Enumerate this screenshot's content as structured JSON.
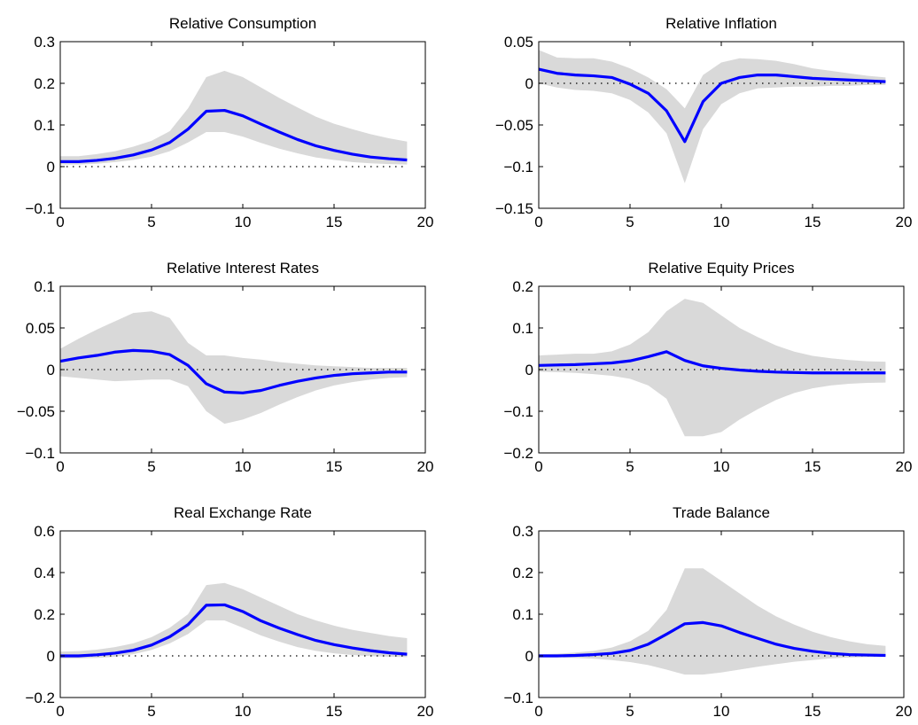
{
  "chart_data": [
    {
      "type": "line",
      "title": "Relative Consumption",
      "xlim": [
        0,
        20
      ],
      "ylim": [
        -0.1,
        0.3
      ],
      "xticks": [
        0,
        5,
        10,
        15,
        20
      ],
      "xtick_labels": [
        "0",
        "5",
        "10",
        "15",
        "20"
      ],
      "yticks": [
        -0.1,
        0,
        0.1,
        0.2,
        0.3
      ],
      "ytick_labels": [
        "−0.1",
        "0",
        "0.1",
        "0.2",
        "0.3"
      ],
      "x": [
        0,
        1,
        2,
        3,
        4,
        5,
        6,
        7,
        8,
        9,
        10,
        11,
        12,
        13,
        14,
        15,
        16,
        17,
        18,
        19
      ],
      "series": [
        {
          "values": [
            0.012,
            0.012,
            0.015,
            0.02,
            0.028,
            0.04,
            0.058,
            0.09,
            0.133,
            0.135,
            0.122,
            0.102,
            0.083,
            0.065,
            0.05,
            0.039,
            0.03,
            0.023,
            0.019,
            0.016
          ]
        }
      ],
      "band_upper": [
        0.025,
        0.025,
        0.03,
        0.037,
        0.048,
        0.062,
        0.085,
        0.14,
        0.215,
        0.23,
        0.215,
        0.19,
        0.165,
        0.142,
        0.12,
        0.103,
        0.09,
        0.078,
        0.068,
        0.06
      ],
      "band_lower": [
        0.005,
        0.005,
        0.007,
        0.011,
        0.016,
        0.024,
        0.037,
        0.058,
        0.083,
        0.083,
        0.072,
        0.057,
        0.043,
        0.032,
        0.022,
        0.016,
        0.011,
        0.008,
        0.006,
        0.005
      ],
      "zero_line": true
    },
    {
      "type": "line",
      "title": "Relative Inflation",
      "xlim": [
        0,
        20
      ],
      "ylim": [
        -0.15,
        0.05
      ],
      "xticks": [
        0,
        5,
        10,
        15,
        20
      ],
      "xtick_labels": [
        "0",
        "5",
        "10",
        "15",
        "20"
      ],
      "yticks": [
        -0.15,
        -0.1,
        -0.05,
        0,
        0.05
      ],
      "ytick_labels": [
        "−0.15",
        "−0.1",
        "−0.05",
        "0",
        "0.05"
      ],
      "x": [
        0,
        1,
        2,
        3,
        4,
        5,
        6,
        7,
        8,
        9,
        10,
        11,
        12,
        13,
        14,
        15,
        16,
        17,
        18,
        19
      ],
      "series": [
        {
          "values": [
            0.017,
            0.012,
            0.01,
            0.009,
            0.007,
            -0.001,
            -0.012,
            -0.033,
            -0.07,
            -0.022,
            0.0,
            0.007,
            0.01,
            0.01,
            0.008,
            0.006,
            0.005,
            0.004,
            0.003,
            0.002
          ]
        }
      ],
      "band_upper": [
        0.04,
        0.031,
        0.03,
        0.03,
        0.026,
        0.018,
        0.007,
        -0.007,
        -0.03,
        0.01,
        0.025,
        0.03,
        0.029,
        0.027,
        0.023,
        0.018,
        0.015,
        0.012,
        0.009,
        0.007
      ],
      "band_lower": [
        0.0,
        -0.005,
        -0.008,
        -0.009,
        -0.012,
        -0.02,
        -0.035,
        -0.06,
        -0.12,
        -0.055,
        -0.025,
        -0.012,
        -0.006,
        -0.005,
        -0.004,
        -0.004,
        -0.003,
        -0.003,
        -0.002,
        -0.002
      ],
      "zero_line": true
    },
    {
      "type": "line",
      "title": "Relative Interest Rates",
      "xlim": [
        0,
        20
      ],
      "ylim": [
        -0.1,
        0.1
      ],
      "xticks": [
        0,
        5,
        10,
        15,
        20
      ],
      "xtick_labels": [
        "0",
        "5",
        "10",
        "15",
        "20"
      ],
      "yticks": [
        -0.1,
        -0.05,
        0,
        0.05,
        0.1
      ],
      "ytick_labels": [
        "−0.1",
        "−0.05",
        "0",
        "0.05",
        "0.1"
      ],
      "x": [
        0,
        1,
        2,
        3,
        4,
        5,
        6,
        7,
        8,
        9,
        10,
        11,
        12,
        13,
        14,
        15,
        16,
        17,
        18,
        19
      ],
      "series": [
        {
          "values": [
            0.01,
            0.014,
            0.017,
            0.021,
            0.023,
            0.022,
            0.018,
            0.005,
            -0.017,
            -0.027,
            -0.028,
            -0.025,
            -0.019,
            -0.014,
            -0.01,
            -0.007,
            -0.005,
            -0.004,
            -0.003,
            -0.003
          ]
        }
      ],
      "band_upper": [
        0.025,
        0.037,
        0.048,
        0.058,
        0.068,
        0.07,
        0.062,
        0.032,
        0.017,
        0.017,
        0.014,
        0.012,
        0.009,
        0.007,
        0.005,
        0.004,
        0.003,
        0.002,
        0.002,
        0.002
      ],
      "band_lower": [
        -0.008,
        -0.01,
        -0.012,
        -0.014,
        -0.013,
        -0.012,
        -0.012,
        -0.02,
        -0.05,
        -0.065,
        -0.06,
        -0.052,
        -0.042,
        -0.033,
        -0.025,
        -0.019,
        -0.015,
        -0.012,
        -0.01,
        -0.009
      ],
      "zero_line": true
    },
    {
      "type": "line",
      "title": "Relative Equity Prices",
      "xlim": [
        0,
        20
      ],
      "ylim": [
        -0.2,
        0.2
      ],
      "xticks": [
        0,
        5,
        10,
        15,
        20
      ],
      "xtick_labels": [
        "0",
        "5",
        "10",
        "15",
        "20"
      ],
      "yticks": [
        -0.2,
        -0.1,
        0,
        0.1,
        0.2
      ],
      "ytick_labels": [
        "−0.2",
        "−0.1",
        "0",
        "0.1",
        "0.2"
      ],
      "x": [
        0,
        1,
        2,
        3,
        4,
        5,
        6,
        7,
        8,
        9,
        10,
        11,
        12,
        13,
        14,
        15,
        16,
        17,
        18,
        19
      ],
      "series": [
        {
          "values": [
            0.01,
            0.011,
            0.012,
            0.014,
            0.016,
            0.021,
            0.031,
            0.043,
            0.022,
            0.009,
            0.003,
            -0.001,
            -0.004,
            -0.006,
            -0.007,
            -0.008,
            -0.008,
            -0.008,
            -0.008,
            -0.008
          ]
        }
      ],
      "band_upper": [
        0.034,
        0.036,
        0.038,
        0.038,
        0.044,
        0.06,
        0.09,
        0.14,
        0.17,
        0.16,
        0.13,
        0.1,
        0.078,
        0.058,
        0.043,
        0.033,
        0.027,
        0.023,
        0.02,
        0.019
      ],
      "band_lower": [
        -0.005,
        -0.006,
        -0.008,
        -0.011,
        -0.015,
        -0.022,
        -0.038,
        -0.07,
        -0.16,
        -0.16,
        -0.15,
        -0.12,
        -0.095,
        -0.073,
        -0.056,
        -0.045,
        -0.038,
        -0.034,
        -0.032,
        -0.031
      ],
      "zero_line": true
    },
    {
      "type": "line",
      "title": "Real Exchange Rate",
      "xlim": [
        0,
        20
      ],
      "ylim": [
        -0.2,
        0.6
      ],
      "xticks": [
        0,
        5,
        10,
        15,
        20
      ],
      "xtick_labels": [
        "0",
        "5",
        "10",
        "15",
        "20"
      ],
      "yticks": [
        -0.2,
        0,
        0.2,
        0.4,
        0.6
      ],
      "ytick_labels": [
        "−0.2",
        "0",
        "0.2",
        "0.4",
        "0.6"
      ],
      "x": [
        0,
        1,
        2,
        3,
        4,
        5,
        6,
        7,
        8,
        9,
        10,
        11,
        12,
        13,
        14,
        15,
        16,
        17,
        18,
        19
      ],
      "series": [
        {
          "values": [
            0.0,
            0.0,
            0.005,
            0.013,
            0.027,
            0.052,
            0.092,
            0.15,
            0.243,
            0.245,
            0.213,
            0.168,
            0.133,
            0.102,
            0.074,
            0.054,
            0.038,
            0.025,
            0.015,
            0.008
          ]
        }
      ],
      "band_upper": [
        0.02,
        0.023,
        0.03,
        0.042,
        0.06,
        0.09,
        0.135,
        0.2,
        0.34,
        0.35,
        0.32,
        0.28,
        0.24,
        0.2,
        0.17,
        0.145,
        0.125,
        0.11,
        0.095,
        0.085
      ],
      "band_lower": [
        -0.012,
        -0.012,
        -0.01,
        -0.004,
        0.008,
        0.028,
        0.06,
        0.105,
        0.17,
        0.17,
        0.135,
        0.098,
        0.068,
        0.042,
        0.024,
        0.012,
        0.004,
        -0.001,
        -0.004,
        -0.006
      ],
      "zero_line": true
    },
    {
      "type": "line",
      "title": "Trade Balance",
      "xlim": [
        0,
        20
      ],
      "ylim": [
        -0.1,
        0.3
      ],
      "xticks": [
        0,
        5,
        10,
        15,
        20
      ],
      "xtick_labels": [
        "0",
        "5",
        "10",
        "15",
        "20"
      ],
      "yticks": [
        -0.1,
        0,
        0.1,
        0.2,
        0.3
      ],
      "ytick_labels": [
        "−0.1",
        "0",
        "0.1",
        "0.2",
        "0.3"
      ],
      "x": [
        0,
        1,
        2,
        3,
        4,
        5,
        6,
        7,
        8,
        9,
        10,
        11,
        12,
        13,
        14,
        15,
        16,
        17,
        18,
        19
      ],
      "series": [
        {
          "values": [
            0.0,
            0.0,
            0.001,
            0.003,
            0.006,
            0.013,
            0.028,
            0.052,
            0.077,
            0.08,
            0.072,
            0.056,
            0.042,
            0.028,
            0.018,
            0.011,
            0.006,
            0.003,
            0.002,
            0.001
          ]
        }
      ],
      "band_upper": [
        0.004,
        0.005,
        0.008,
        0.012,
        0.02,
        0.035,
        0.06,
        0.11,
        0.21,
        0.21,
        0.18,
        0.15,
        0.12,
        0.095,
        0.075,
        0.058,
        0.045,
        0.035,
        0.028,
        0.024
      ],
      "band_lower": [
        -0.004,
        -0.004,
        -0.005,
        -0.007,
        -0.01,
        -0.015,
        -0.022,
        -0.033,
        -0.045,
        -0.045,
        -0.04,
        -0.033,
        -0.026,
        -0.02,
        -0.014,
        -0.01,
        -0.006,
        -0.004,
        -0.003,
        -0.002
      ],
      "zero_line": true
    }
  ],
  "colors": {
    "line": "#0000ff",
    "band": "#d9d9d9",
    "zero_line": "#000000",
    "axes": "#000000"
  }
}
